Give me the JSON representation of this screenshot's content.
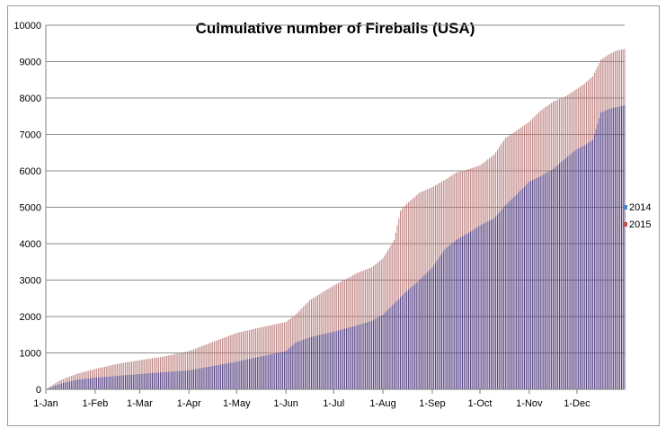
{
  "chart_data": {
    "type": "bar",
    "title": "Culmulative number of Fireballs (USA)",
    "xlabel": "",
    "ylabel": "",
    "ylim": [
      0,
      10000
    ],
    "yticks": [
      0,
      1000,
      2000,
      3000,
      4000,
      5000,
      6000,
      7000,
      8000,
      9000,
      10000
    ],
    "xlim": [
      1,
      365
    ],
    "month_ticks": [
      {
        "label": "1-Jan",
        "day": 1
      },
      {
        "label": "1-Feb",
        "day": 32
      },
      {
        "label": "1-Mar",
        "day": 60
      },
      {
        "label": "1-Apr",
        "day": 91
      },
      {
        "label": "1-May",
        "day": 121
      },
      {
        "label": "1-Jun",
        "day": 152
      },
      {
        "label": "1-Jul",
        "day": 182
      },
      {
        "label": "1-Aug",
        "day": 213
      },
      {
        "label": "1-Sep",
        "day": 244
      },
      {
        "label": "1-Oct",
        "day": 274
      },
      {
        "label": "1-Nov",
        "day": 305
      },
      {
        "label": "1-Dec",
        "day": 335
      }
    ],
    "grid": true,
    "legend_position": "right",
    "series": [
      {
        "name": "2014",
        "color": "#4f81bd",
        "bar_color": "#4b3f88",
        "x": [
          1,
          10,
          20,
          32,
          46,
          60,
          75,
          91,
          106,
          121,
          136,
          152,
          158,
          167,
          182,
          197,
          206,
          213,
          220,
          228,
          236,
          244,
          252,
          259,
          267,
          274,
          283,
          290,
          297,
          305,
          312,
          320,
          328,
          335,
          340,
          345,
          350,
          355,
          360,
          365
        ],
        "y": [
          0,
          150,
          260,
          320,
          370,
          420,
          470,
          520,
          640,
          760,
          900,
          1050,
          1280,
          1430,
          1580,
          1760,
          1880,
          2050,
          2350,
          2700,
          3000,
          3350,
          3850,
          4100,
          4300,
          4500,
          4700,
          5050,
          5350,
          5700,
          5850,
          6050,
          6350,
          6600,
          6700,
          6850,
          7600,
          7700,
          7750,
          7800
        ]
      },
      {
        "name": "2015",
        "color": "#c0504d",
        "bar_color": "#b87a78",
        "x": [
          1,
          10,
          20,
          32,
          46,
          60,
          75,
          91,
          106,
          121,
          136,
          152,
          158,
          167,
          182,
          197,
          206,
          213,
          220,
          224,
          228,
          236,
          244,
          252,
          259,
          267,
          274,
          283,
          290,
          297,
          305,
          312,
          320,
          328,
          335,
          340,
          345,
          350,
          355,
          360,
          365
        ],
        "y": [
          0,
          250,
          420,
          560,
          700,
          800,
          900,
          1050,
          1300,
          1550,
          1700,
          1850,
          2050,
          2450,
          2850,
          3200,
          3350,
          3600,
          4100,
          4900,
          5100,
          5400,
          5550,
          5750,
          5950,
          6050,
          6150,
          6450,
          6900,
          7100,
          7350,
          7650,
          7900,
          8050,
          8250,
          8400,
          8600,
          9050,
          9200,
          9300,
          9350
        ]
      }
    ]
  }
}
